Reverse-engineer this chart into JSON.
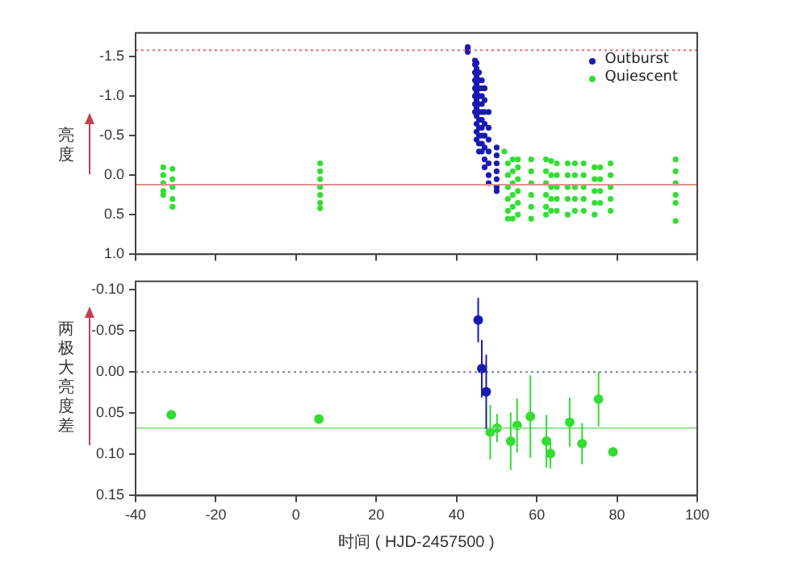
{
  "chart_data": [
    {
      "type": "scatter",
      "ylabel": "亮度",
      "xlim": [
        -40,
        100
      ],
      "xticks": [
        -40,
        -20,
        0,
        20,
        40,
        60,
        80,
        100
      ],
      "ylim": [
        1.0,
        -1.8
      ],
      "yticks": [
        {
          "value": -1.5,
          "label": "-1.5"
        },
        {
          "value": -1.0,
          "label": "-1.0"
        },
        {
          "value": -0.5,
          "label": "-0.5"
        },
        {
          "value": 0,
          "label": "0.0"
        },
        {
          "value": 0.5,
          "label": "0.5"
        },
        {
          "value": 1.0,
          "label": "1.0"
        }
      ],
      "tick_labels": "y",
      "grid": false,
      "legend": "top right",
      "marker": "circle",
      "ref_lines": [
        {
          "axis": "y",
          "value": -1.58,
          "color": "#e07070",
          "line_style": "dotted"
        },
        {
          "axis": "y",
          "value": 0.12,
          "color": "#e09090",
          "line_style": "solid"
        }
      ],
      "series": [
        {
          "name": "Outburst",
          "color": "#1a1ab0",
          "x": [
            42.8,
            42.8,
            42.8,
            42.8,
            44.6,
            44.6,
            44.6,
            44.6,
            44.6,
            44.6,
            44.6,
            44.6,
            45.0,
            45.0,
            45.0,
            45.0,
            45.0,
            45.0,
            45.0,
            45.0,
            45.0,
            45.0,
            45.0,
            45.6,
            45.6,
            45.6,
            45.6,
            45.6,
            45.6,
            45.6,
            45.6,
            45.6,
            45.6,
            45.6,
            46.3,
            46.3,
            46.3,
            46.3,
            46.3,
            46.3,
            46.3,
            46.3,
            46.3,
            46.3,
            47.0,
            47.0,
            47.0,
            47.0,
            47.0,
            47.0,
            47.0,
            47.0,
            48.0,
            48.0,
            48.0,
            48.0,
            48.0,
            48.0,
            48.0,
            50.0,
            50.0,
            50.0,
            50.0,
            50.0,
            50.0,
            50.0
          ],
          "values": [
            -1.62,
            -1.6,
            -1.58,
            -1.56,
            -1.45,
            -1.4,
            -1.3,
            -1.2,
            -1.1,
            -1.0,
            -0.9,
            -0.8,
            -1.42,
            -1.35,
            -1.25,
            -1.15,
            -1.05,
            -0.95,
            -0.85,
            -0.75,
            -0.65,
            -0.55,
            -0.45,
            -1.3,
            -1.2,
            -1.1,
            -1.0,
            -0.9,
            -0.8,
            -0.7,
            -0.6,
            -0.5,
            -0.4,
            -0.3,
            -1.2,
            -1.1,
            -1.0,
            -0.9,
            -0.8,
            -0.7,
            -0.6,
            -0.5,
            -0.4,
            -0.3,
            -1.1,
            -0.95,
            -0.8,
            -0.65,
            -0.5,
            -0.35,
            -0.2,
            -0.1,
            -0.8,
            -0.6,
            -0.45,
            -0.3,
            -0.15,
            0.0,
            0.1,
            -0.35,
            -0.25,
            -0.15,
            -0.05,
            0.05,
            0.15,
            0.2
          ]
        },
        {
          "name": "Quiescent",
          "color": "#33dd33",
          "x": [
            -33.1,
            -33.1,
            -33.1,
            -33.1,
            -33.1,
            -30.8,
            -30.8,
            -30.8,
            -30.8,
            -30.8,
            6.0,
            6.0,
            6.0,
            6.0,
            6.0,
            6.0,
            6.0,
            51.9,
            52.8,
            52.8,
            52.8,
            52.8,
            52.8,
            52.8,
            54.0,
            54.0,
            54.0,
            54.0,
            54.0,
            54.0,
            55.3,
            55.3,
            55.3,
            55.3,
            55.3,
            55.3,
            58.6,
            58.6,
            58.6,
            58.6,
            58.6,
            58.6,
            62.3,
            62.3,
            62.3,
            62.3,
            62.3,
            62.3,
            63.6,
            63.6,
            63.6,
            63.6,
            63.6,
            65.0,
            65.0,
            65.0,
            65.0,
            65.0,
            67.7,
            67.7,
            67.7,
            67.7,
            67.7,
            69.5,
            69.5,
            69.5,
            69.5,
            69.5,
            71.7,
            71.7,
            71.7,
            71.7,
            71.7,
            74.4,
            74.4,
            74.4,
            74.4,
            74.4,
            75.8,
            75.8,
            75.8,
            75.8,
            78.4,
            78.4,
            78.4,
            78.4,
            78.4,
            94.6,
            94.6,
            94.6,
            94.6,
            94.6,
            94.6
          ],
          "values": [
            -0.1,
            0.0,
            0.1,
            0.2,
            0.25,
            -0.08,
            0.05,
            0.15,
            0.3,
            0.4,
            -0.15,
            -0.05,
            0.05,
            0.15,
            0.25,
            0.35,
            0.42,
            -0.3,
            -0.15,
            0.0,
            0.15,
            0.3,
            0.45,
            0.55,
            -0.2,
            -0.05,
            0.1,
            0.25,
            0.4,
            0.55,
            -0.2,
            -0.1,
            0.05,
            0.2,
            0.35,
            0.5,
            -0.2,
            -0.05,
            0.1,
            0.25,
            0.4,
            0.55,
            -0.2,
            -0.05,
            0.1,
            0.25,
            0.4,
            0.5,
            -0.18,
            0.0,
            0.15,
            0.3,
            0.45,
            -0.15,
            0.0,
            0.15,
            0.3,
            0.45,
            -0.15,
            0.0,
            0.15,
            0.3,
            0.5,
            -0.15,
            0.0,
            0.15,
            0.3,
            0.45,
            -0.15,
            0.0,
            0.15,
            0.3,
            0.45,
            -0.1,
            0.05,
            0.2,
            0.35,
            0.5,
            -0.1,
            0.05,
            0.2,
            0.35,
            -0.15,
            0.0,
            0.15,
            0.3,
            0.45,
            -0.2,
            -0.05,
            0.1,
            0.25,
            0.35,
            0.58
          ]
        }
      ]
    },
    {
      "type": "scatter",
      "ylabel": "两极大亮度差",
      "xlabel": "时间 ( HJD-2457500 )",
      "xlim": [
        -40,
        100
      ],
      "xticks": [
        -40,
        -20,
        0,
        20,
        40,
        60,
        80,
        100
      ],
      "ylim": [
        0.15,
        -0.11
      ],
      "yticks": [
        {
          "value": -0.1,
          "label": "-0.10"
        },
        {
          "value": -0.05,
          "label": "-0.05"
        },
        {
          "value": 0,
          "label": "0.00"
        },
        {
          "value": 0.05,
          "label": "0.05"
        },
        {
          "value": 0.1,
          "label": "0.10"
        },
        {
          "value": 0.15,
          "label": "0.15"
        }
      ],
      "grid": false,
      "marker": "circle",
      "ref_lines": [
        {
          "axis": "y",
          "value": 0,
          "color": "#8080a8",
          "line_style": "dotted"
        },
        {
          "axis": "y",
          "value": 0.068,
          "color": "#90e090",
          "line_style": "solid"
        }
      ],
      "series": [
        {
          "color": "#1a1ab0",
          "x": [
            45.4,
            46.3,
            47.4
          ],
          "values": [
            -0.063,
            -0.004,
            0.024
          ],
          "errors": [
            0.027,
            0.035,
            0.045
          ]
        },
        {
          "color": "#33dd33",
          "x": [
            -31.1,
            5.7,
            48.4,
            50.1,
            53.5,
            55.1,
            58.4,
            62.4,
            63.4,
            68.2,
            71.3,
            75.4,
            79.0
          ],
          "values": [
            0.052,
            0.057,
            0.073,
            0.068,
            0.084,
            0.065,
            0.054,
            0.084,
            0.099,
            0.061,
            0.087,
            0.033,
            0.097
          ],
          "errors": [
            null,
            0.005,
            0.033,
            0.017,
            0.035,
            0.033,
            0.05,
            0.032,
            0.018,
            0.03,
            0.025,
            0.033,
            null
          ]
        }
      ]
    }
  ]
}
